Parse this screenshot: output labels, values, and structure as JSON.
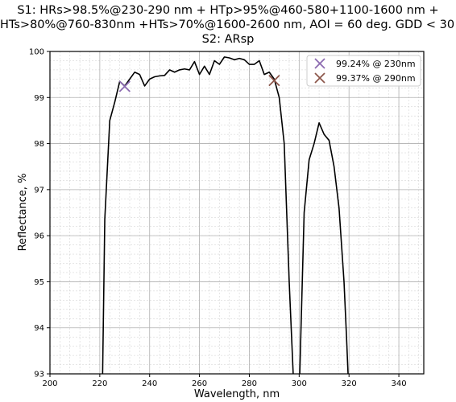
{
  "chart_data": {
    "type": "line",
    "title": [
      "S1: HRs>98.5%@230-290 nm + HTp>95%@460-580+1100-1600 nm +",
      "HTs>80%@760-830nm +HTs>70%@1600-2600 nm, AOI = 60 deg. GDD < 30 fs",
      "S2: ARsp"
    ],
    "xlabel": "Wavelength, nm",
    "ylabel": "Reflectance, %",
    "xlim": [
      200,
      350
    ],
    "ylim": [
      93,
      100
    ],
    "xticks": [
      "200",
      "220",
      "240",
      "260",
      "280",
      "300",
      "320",
      "340"
    ],
    "yticks": [
      "93",
      "94",
      "95",
      "96",
      "97",
      "98",
      "99",
      "100"
    ],
    "grid": true,
    "minor_grid": true,
    "legend_position": "top-right",
    "series": [
      {
        "color": "#000000",
        "x": [
          221,
          222,
          224,
          226,
          228,
          230,
          232,
          234,
          236,
          238,
          240,
          242,
          244,
          246,
          248,
          250,
          252,
          254,
          256,
          258,
          260,
          262,
          264,
          266,
          268,
          270,
          272,
          274,
          276,
          278,
          280,
          282,
          284,
          286,
          288,
          290,
          292,
          294,
          296,
          298,
          300,
          302,
          304,
          306,
          308,
          310,
          312,
          314,
          316,
          318,
          319,
          320
        ],
        "y": [
          92.5,
          96.35,
          98.5,
          98.9,
          99.35,
          99.25,
          99.4,
          99.55,
          99.5,
          99.25,
          99.4,
          99.45,
          99.47,
          99.48,
          99.6,
          99.55,
          99.6,
          99.62,
          99.6,
          99.78,
          99.5,
          99.68,
          99.5,
          99.8,
          99.72,
          99.88,
          99.86,
          99.82,
          99.85,
          99.82,
          99.72,
          99.72,
          99.8,
          99.5,
          99.55,
          99.4,
          99.0,
          98.0,
          95.0,
          92.5,
          92.5,
          96.5,
          97.65,
          98.0,
          98.45,
          98.2,
          98.07,
          97.5,
          96.6,
          95.0,
          93.8,
          92.5
        ]
      }
    ],
    "markers": [
      {
        "label": "99.24% @ 230nm",
        "x": 230,
        "y": 99.24,
        "color": "#8c6bb1",
        "symbol": "x"
      },
      {
        "label": "99.37% @ 290nm",
        "x": 290,
        "y": 99.37,
        "color": "#8c564b",
        "symbol": "x"
      }
    ]
  }
}
